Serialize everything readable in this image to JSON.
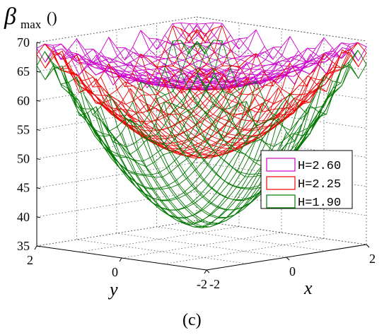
{
  "chart_data": {
    "type": "surface",
    "zlabel_symbol": "β",
    "zlabel_subscript": "max",
    "zlabel_unit": "()",
    "xlabel": "x",
    "ylabel": "y",
    "caption": "(c)",
    "zlim": [
      35,
      70
    ],
    "zticks": [
      35,
      40,
      45,
      50,
      55,
      60,
      65,
      70
    ],
    "xlim": [
      -2,
      2
    ],
    "xticks": [
      -2,
      0,
      2
    ],
    "ylim": [
      -2,
      2
    ],
    "yticks": [
      2,
      0,
      -2
    ],
    "grid": true,
    "legend_position": "right",
    "colors": {
      "H=2.60": "#cc00cc",
      "H=2.25": "#ee0000",
      "H=1.90": "#007700"
    },
    "series": [
      {
        "name": "H=2.60",
        "color": "#cc00cc",
        "min_value": 62,
        "rim_value": 69
      },
      {
        "name": "H=2.25",
        "color": "#ee0000",
        "min_value": 50,
        "rim_value": 68
      },
      {
        "name": "H=1.90",
        "color": "#007700",
        "min_value": 38,
        "rim_value": 66
      }
    ]
  }
}
